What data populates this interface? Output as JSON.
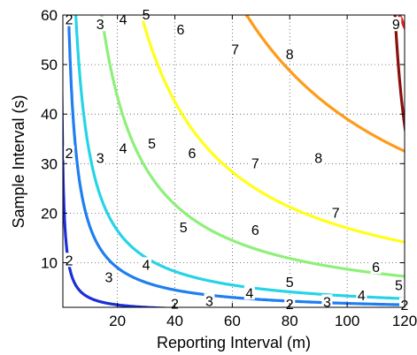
{
  "chart_data": {
    "type": "contour",
    "xlabel": "Reporting Interval (m)",
    "ylabel": "Sample Interval (s)",
    "xlim": [
      1,
      120
    ],
    "ylim": [
      1,
      60
    ],
    "x_ticks": [
      20,
      40,
      60,
      80,
      100,
      120
    ],
    "y_ticks": [
      10,
      20,
      30,
      40,
      50,
      60
    ],
    "grid": "dotted",
    "colormap": "jet",
    "level_colors": {
      "2": "#1c2fd6",
      "3": "#1f7ef0",
      "4": "#26d4e6",
      "5": "#8ef07a",
      "6": "#ffff1a",
      "7": "#ff9a1a",
      "8": "#e8231a",
      "9": "#8a1010"
    },
    "contours": [
      {
        "level": "2",
        "k": 30,
        "labels": [
          [
            3.2,
            59
          ],
          [
            3.2,
            32
          ],
          [
            3.2,
            10.4
          ],
          [
            40,
            1.6
          ],
          [
            80,
            1.5
          ],
          [
            120,
            1.4
          ]
        ]
      },
      {
        "level": "3",
        "k": 180,
        "labels": [
          [
            14,
            58
          ],
          [
            14,
            31
          ],
          [
            17,
            7
          ],
          [
            52,
            2.2
          ],
          [
            93,
            2.0
          ]
        ]
      },
      {
        "level": "4",
        "k": 330,
        "labels": [
          [
            22,
            59
          ],
          [
            22,
            33
          ],
          [
            30,
            9.5
          ],
          [
            66,
            3.8
          ],
          [
            105,
            3.3
          ]
        ]
      },
      {
        "level": "5",
        "k": 870,
        "labels": [
          [
            30,
            60
          ],
          [
            32,
            34
          ],
          [
            43,
            17
          ],
          [
            80,
            6
          ],
          [
            118,
            5.4
          ]
        ]
      },
      {
        "level": "6",
        "k": 1700,
        "labels": [
          [
            42,
            57
          ],
          [
            46,
            32
          ],
          [
            68,
            16.5
          ],
          [
            110,
            9
          ]
        ]
      },
      {
        "level": "7",
        "k": 3900,
        "labels": [
          [
            61,
            53
          ],
          [
            68,
            30
          ],
          [
            96,
            20
          ]
        ]
      },
      {
        "level": "8",
        "k": 2650,
        "x0": 74,
        "labels": [
          [
            80,
            52
          ],
          [
            90,
            31
          ]
        ]
      },
      {
        "level": "9",
        "k": 340,
        "x0": 111,
        "labels": [
          [
            117,
            58
          ]
        ]
      }
    ]
  }
}
